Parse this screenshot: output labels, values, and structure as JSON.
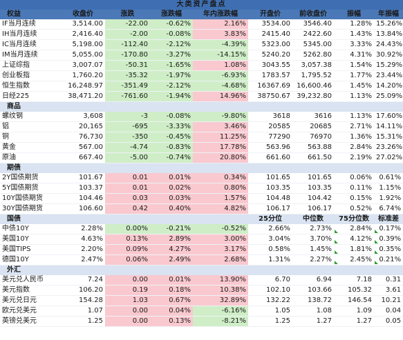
{
  "title": "大类资产盘点",
  "headers": [
    "权益",
    "收盘价",
    "涨跌",
    "涨跌幅",
    "年内涨跌幅",
    "开盘价",
    "前收盘价",
    "振幅",
    "年振幅"
  ],
  "sections": [
    {
      "name": "权益",
      "rows": [
        {
          "name": "IF当月连续",
          "cells": [
            "3,514.00",
            "-22.00",
            "-0.62%",
            "2.16%",
            "3534.00",
            "3546.40",
            "1.28%",
            "15.26%"
          ],
          "dir": [
            "",
            "dn",
            "dn",
            "up-bg",
            "",
            "",
            "",
            ""
          ]
        },
        {
          "name": "IH当月连续",
          "cells": [
            "2,416.40",
            "-2.00",
            "-0.08%",
            "3.83%",
            "2415.40",
            "2422.60",
            "1.43%",
            "13.84%"
          ],
          "dir": [
            "",
            "dn",
            "dn",
            "up-bg",
            "",
            "",
            "",
            ""
          ]
        },
        {
          "name": "IC当月连续",
          "cells": [
            "5,198.00",
            "-112.40",
            "-2.12%",
            "-4.39%",
            "5323.00",
            "5345.00",
            "3.33%",
            "24.43%"
          ],
          "dir": [
            "",
            "dn",
            "dn",
            "dn",
            "",
            "",
            "",
            ""
          ]
        },
        {
          "name": "IM当月连续",
          "cells": [
            "5,055.00",
            "-170.80",
            "-3.27%",
            "-14.15%",
            "5240.20",
            "5262.80",
            "4.31%",
            "30.92%"
          ],
          "dir": [
            "",
            "dn",
            "dn",
            "dn",
            "",
            "",
            "",
            ""
          ]
        },
        {
          "name": "上证综指",
          "cells": [
            "3,007.07",
            "-50.31",
            "-1.65%",
            "1.08%",
            "3043.55",
            "3,057.38",
            "1.54%",
            "15.29%"
          ],
          "dir": [
            "",
            "dn",
            "dn",
            "up-bg",
            "",
            "",
            "",
            ""
          ]
        },
        {
          "name": "创业板指",
          "cells": [
            "1,760.20",
            "-35.32",
            "-1.97%",
            "-6.93%",
            "1783.57",
            "1,795.52",
            "1.77%",
            "23.44%"
          ],
          "dir": [
            "",
            "dn",
            "dn",
            "dn",
            "",
            "",
            "",
            ""
          ]
        },
        {
          "name": "恒生指数",
          "cells": [
            "16,248.97",
            "-351.49",
            "-2.12%",
            "-4.68%",
            "16367.69",
            "16,600.46",
            "1.45%",
            "14.20%"
          ],
          "dir": [
            "",
            "dn",
            "dn",
            "dn",
            "",
            "",
            "",
            ""
          ]
        },
        {
          "name": "日经225",
          "cells": [
            "38,471.20",
            "-761.60",
            "-1.94%",
            "14.96%",
            "38750.67",
            "39,232.80",
            "1.13%",
            "25.09%"
          ],
          "dir": [
            "",
            "dn",
            "dn",
            "up-bg",
            "",
            "",
            "",
            ""
          ]
        }
      ]
    },
    {
      "name": "商品",
      "rows": [
        {
          "name": "螺纹钢",
          "cells": [
            "3,608",
            "-3",
            "-0.08%",
            "-9.80%",
            "3618",
            "3616",
            "1.13%",
            "17.60%"
          ],
          "dir": [
            "",
            "dn",
            "dn",
            "dn",
            "",
            "",
            "",
            ""
          ]
        },
        {
          "name": "铝",
          "cells": [
            "20,165",
            "-695",
            "-3.33%",
            "3.46%",
            "20585",
            "20685",
            "2.71%",
            "14.11%"
          ],
          "dir": [
            "",
            "dn",
            "dn",
            "up-bg",
            "",
            "",
            "",
            ""
          ]
        },
        {
          "name": "铜",
          "cells": [
            "76,730",
            "-350",
            "-0.45%",
            "11.25%",
            "77290",
            "76970",
            "1.36%",
            "15.31%"
          ],
          "dir": [
            "",
            "dn",
            "dn",
            "up-bg",
            "",
            "",
            "",
            ""
          ]
        },
        {
          "name": "黄金",
          "cells": [
            "567.00",
            "-4.74",
            "-0.83%",
            "17.78%",
            "563.96",
            "563.88",
            "2.84%",
            "23.26%"
          ],
          "dir": [
            "",
            "dn",
            "dn",
            "up-bg",
            "",
            "",
            "",
            ""
          ]
        },
        {
          "name": "原油",
          "cells": [
            "667.40",
            "-5.00",
            "-0.74%",
            "20.80%",
            "661.60",
            "661.50",
            "2.19%",
            "27.02%"
          ],
          "dir": [
            "",
            "dn",
            "dn",
            "up-bg",
            "",
            "",
            "",
            ""
          ]
        }
      ]
    },
    {
      "name": "期债",
      "rows": [
        {
          "name": "2Y国债期货",
          "cells": [
            "101.67",
            "0.01",
            "0.01%",
            "0.34%",
            "101.65",
            "101.65",
            "0.06%",
            "0.61%"
          ],
          "dir": [
            "",
            "up-bg",
            "up-bg",
            "up-bg",
            "",
            "",
            "",
            ""
          ]
        },
        {
          "name": "5Y国债期货",
          "cells": [
            "103.37",
            "0.01",
            "0.02%",
            "0.80%",
            "103.35",
            "103.35",
            "0.11%",
            "1.15%"
          ],
          "dir": [
            "",
            "up-bg",
            "up-bg",
            "up-bg",
            "",
            "",
            "",
            ""
          ]
        },
        {
          "name": "10Y国债期货",
          "cells": [
            "104.46",
            "0.03",
            "0.03%",
            "1.57%",
            "104.48",
            "104.42",
            "0.15%",
            "1.92%"
          ],
          "dir": [
            "",
            "up-bg",
            "up-bg",
            "up-bg",
            "",
            "",
            "",
            ""
          ]
        },
        {
          "name": "30Y国债期货",
          "cells": [
            "106.60",
            "0.42",
            "0.40%",
            "4.82%",
            "106.17",
            "106.17",
            "0.52%",
            "6.74%"
          ],
          "dir": [
            "",
            "up-bg",
            "up-bg",
            "up-bg",
            "",
            "",
            "",
            ""
          ]
        }
      ]
    },
    {
      "name": "国债",
      "head": [
        "",
        "",
        "",
        "",
        "25分位",
        "中位数",
        "75分位数",
        "标准差"
      ],
      "rows": [
        {
          "name": "中债10Y",
          "cells": [
            "2.28%",
            "0.00%",
            "-0.21%",
            "-0.52%",
            "2.66%",
            "2.73%",
            "2.84%",
            "0.17%"
          ],
          "dir": [
            "",
            "dn",
            "dn",
            "dn",
            "",
            "",
            "",
            ""
          ],
          "ticks": [
            6,
            7
          ]
        },
        {
          "name": "美国10Y",
          "cells": [
            "4.63%",
            "0.13%",
            "2.89%",
            "3.00%",
            "3.04%",
            "3.70%",
            "4.12%",
            "0.39%"
          ],
          "dir": [
            "",
            "up-bg",
            "up-bg",
            "up-bg",
            "",
            "",
            "",
            ""
          ],
          "ticks": [
            6,
            7
          ]
        },
        {
          "name": "美国TIPS",
          "cells": [
            "2.20%",
            "0.09%",
            "4.27%",
            "3.17%",
            "0.58%",
            "1.45%",
            "1.81%",
            "0.35%"
          ],
          "dir": [
            "",
            "up-bg",
            "up-bg",
            "up-bg",
            "",
            "",
            "",
            ""
          ],
          "ticks": [
            6,
            7
          ]
        },
        {
          "name": "德国10Y",
          "cells": [
            "2.47%",
            "0.06%",
            "2.49%",
            "2.68%",
            "1.31%",
            "2.27%",
            "2.45%",
            "0.21%"
          ],
          "dir": [
            "",
            "up-bg",
            "up-bg",
            "up-bg",
            "",
            "",
            "",
            ""
          ],
          "ticks": [
            6,
            7
          ]
        }
      ]
    },
    {
      "name": "外汇",
      "rows": [
        {
          "name": "美元兑人民币",
          "cells": [
            "7.24",
            "0.00",
            "0.01%",
            "13.90%",
            "6.70",
            "6.94",
            "7.18",
            "0.31"
          ],
          "dir": [
            "",
            "up-bg",
            "up-bg",
            "up-bg",
            "",
            "",
            "",
            ""
          ]
        },
        {
          "name": "美元指数",
          "cells": [
            "106.20",
            "0.19",
            "0.18%",
            "10.38%",
            "102.10",
            "103.66",
            "105.32",
            "3.61"
          ],
          "dir": [
            "",
            "up-bg",
            "up-bg",
            "up-bg",
            "",
            "",
            "",
            ""
          ]
        },
        {
          "name": "美元兑日元",
          "cells": [
            "154.28",
            "1.03",
            "0.67%",
            "32.89%",
            "132.22",
            "138.72",
            "146.54",
            "10.21"
          ],
          "dir": [
            "",
            "up-bg",
            "up-bg",
            "up-bg",
            "",
            "",
            "",
            ""
          ]
        },
        {
          "name": "欧元兑美元",
          "cells": [
            "1.07",
            "0.00",
            "0.04%",
            "-6.16%",
            "1.05",
            "1.08",
            "1.09",
            "0.04"
          ],
          "dir": [
            "",
            "up-bg",
            "up-bg",
            "dn",
            "",
            "",
            "",
            ""
          ]
        },
        {
          "name": "英镑兑美元",
          "cells": [
            "1.25",
            "0.00",
            "0.13%",
            "-8.21%",
            "1.25",
            "1.27",
            "1.27",
            "0.05"
          ],
          "dir": [
            "",
            "up-bg",
            "up-bg",
            "dn",
            "",
            "",
            "",
            ""
          ]
        }
      ]
    }
  ],
  "colors": {
    "header_bg": "#4b79b8",
    "section_bg": "#d9e3f1",
    "up_text": "#d0021b",
    "up_bg": "#f9c9cf",
    "down_text": "#1a7a1a",
    "down_bg": "#cfeec7",
    "tick": "#2e9e2e"
  }
}
